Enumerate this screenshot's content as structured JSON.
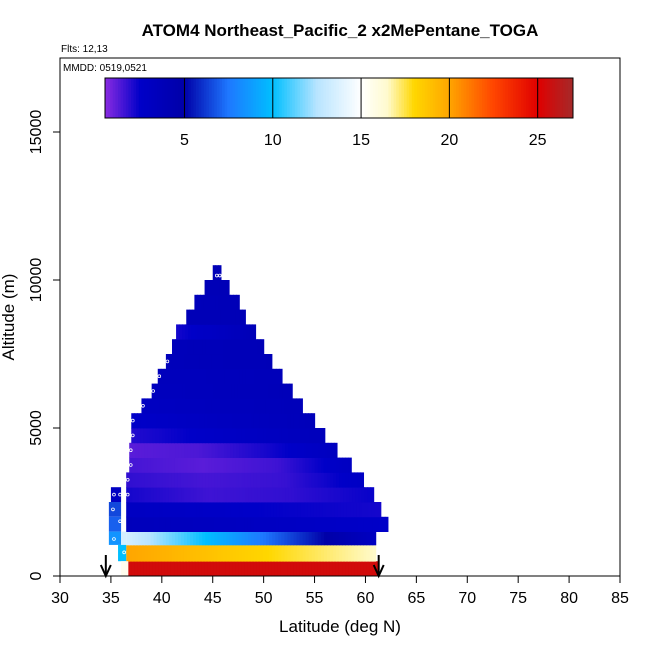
{
  "chart_data": {
    "type": "heatmap",
    "title": "ATOM4 Northeast_Pacific_2 x2MePentane_TOGA",
    "flights_label": "Flts: 12,13",
    "dates_label": "MMDD: 0519,0521",
    "xlabel": "Latitude (deg N)",
    "ylabel": "Altitude (m)",
    "xlim": [
      30,
      85
    ],
    "ylim": [
      0,
      17500
    ],
    "xticks": [
      "30",
      "35",
      "40",
      "45",
      "50",
      "55",
      "60",
      "65",
      "70",
      "75",
      "80",
      "85"
    ],
    "yticks": [
      "0",
      "5000",
      "10000",
      "15000"
    ],
    "colorbar": {
      "range": [
        0.5,
        27
      ],
      "ticks": [
        "5",
        "10",
        "15",
        "20",
        "25"
      ],
      "stops": [
        {
          "v": 0.5,
          "c": "#8a2be2"
        },
        {
          "v": 2.5,
          "c": "#0000c8"
        },
        {
          "v": 5,
          "c": "#0000a8"
        },
        {
          "v": 7.5,
          "c": "#1e78ff"
        },
        {
          "v": 10,
          "c": "#00bfff"
        },
        {
          "v": 12.5,
          "c": "#b8e4ff"
        },
        {
          "v": 15,
          "c": "#ffffff"
        },
        {
          "v": 16.5,
          "c": "#fffacd"
        },
        {
          "v": 18,
          "c": "#ffd700"
        },
        {
          "v": 20,
          "c": "#ffa500"
        },
        {
          "v": 22.5,
          "c": "#ff4500"
        },
        {
          "v": 25,
          "c": "#e00000"
        },
        {
          "v": 27,
          "c": "#a52a2a"
        }
      ]
    },
    "sample_range": [
      34.5,
      61.3
    ],
    "layers": [
      {
        "alt": [
          0,
          500
        ],
        "lat": [
          36.7,
          61.3
        ],
        "values": [
          25.5,
          25.5
        ]
      },
      {
        "alt": [
          500,
          1050
        ],
        "lat": [
          36.5,
          61
        ],
        "values": [
          20.0,
          16.5
        ]
      },
      {
        "alt": [
          1050,
          1500
        ],
        "lat": [
          36.5,
          61
        ],
        "values": [
          13.5,
          8.0,
          3.0
        ]
      },
      {
        "alt": [
          1500,
          2000
        ],
        "lat": [
          36.5,
          62.2
        ],
        "values": [
          3.5,
          2.5
        ]
      },
      {
        "alt": [
          2000,
          2500
        ],
        "lat": [
          36.5,
          61.5
        ],
        "values": [
          3.0,
          2.5,
          2.2
        ]
      },
      {
        "alt": [
          2500,
          3000
        ],
        "lat": [
          36.5,
          60.8
        ],
        "values": [
          2.2,
          1.6,
          1.8,
          2.4
        ]
      },
      {
        "alt": [
          3000,
          3500
        ],
        "lat": [
          36.5,
          59.8
        ],
        "values": [
          1.8,
          1.5,
          1.7,
          2.8
        ]
      },
      {
        "alt": [
          3500,
          4000
        ],
        "lat": [
          36.8,
          58.6
        ],
        "values": [
          1.5,
          1.2,
          1.6,
          3.0
        ]
      },
      {
        "alt": [
          4000,
          4500
        ],
        "lat": [
          36.8,
          57.2
        ],
        "values": [
          1.2,
          1.4,
          2.2,
          3.2
        ]
      },
      {
        "alt": [
          4500,
          5000
        ],
        "lat": [
          37.0,
          56.0
        ],
        "values": [
          2.0,
          2.8,
          3.5
        ]
      },
      {
        "alt": [
          5000,
          5500
        ],
        "lat": [
          37.0,
          55.0
        ],
        "values": [
          2.5,
          3.2,
          3.6
        ]
      },
      {
        "alt": [
          5500,
          6000
        ],
        "lat": [
          38.0,
          53.8
        ],
        "values": [
          3.0,
          3.4,
          3.6
        ]
      },
      {
        "alt": [
          6000,
          6500
        ],
        "lat": [
          39.0,
          52.8
        ],
        "values": [
          3.3,
          3.5,
          3.7
        ]
      },
      {
        "alt": [
          6500,
          7000
        ],
        "lat": [
          39.6,
          51.8
        ],
        "values": [
          3.4,
          3.6
        ]
      },
      {
        "alt": [
          7000,
          7500
        ],
        "lat": [
          40.4,
          50.8
        ],
        "values": [
          3.6,
          3.8
        ]
      },
      {
        "alt": [
          7500,
          8000
        ],
        "lat": [
          41.0,
          50.0
        ],
        "values": [
          3.6,
          3.8
        ]
      },
      {
        "alt": [
          8000,
          8500
        ],
        "lat": [
          41.4,
          49.2
        ],
        "values": [
          2.2,
          3.8
        ]
      },
      {
        "alt": [
          8500,
          9000
        ],
        "lat": [
          42.4,
          48.2
        ],
        "values": [
          3.8,
          3.8
        ]
      },
      {
        "alt": [
          9000,
          9500
        ],
        "lat": [
          43.2,
          47.6
        ],
        "values": [
          3.6,
          3.8
        ]
      },
      {
        "alt": [
          9500,
          10000
        ],
        "lat": [
          44.2,
          46.6
        ],
        "values": [
          3.8,
          3.8
        ]
      },
      {
        "alt": [
          10000,
          10500
        ],
        "lat": [
          45.0,
          45.8
        ],
        "values": [
          3.9,
          3.9
        ]
      }
    ],
    "side_cells": [
      {
        "alt": [
          2500,
          3000
        ],
        "lat": [
          35.0,
          36.0
        ],
        "value": 3.0
      },
      {
        "alt": [
          2000,
          2500
        ],
        "lat": [
          34.8,
          36.0
        ],
        "value": 6.5
      },
      {
        "alt": [
          1500,
          2000
        ],
        "lat": [
          34.8,
          36.0
        ],
        "value": 7.0
      },
      {
        "alt": [
          1050,
          1500
        ],
        "lat": [
          34.8,
          36.0
        ],
        "value": 8.5
      },
      {
        "alt": [
          1050,
          1500
        ],
        "lat": [
          36.0,
          36.5
        ],
        "value": 13.5
      },
      {
        "alt": [
          500,
          1050
        ],
        "lat": [
          35.7,
          36.5
        ],
        "value": 10.0
      },
      {
        "alt": [
          0,
          500
        ],
        "lat": [
          36.0,
          36.7
        ],
        "value": 15.5
      }
    ]
  }
}
